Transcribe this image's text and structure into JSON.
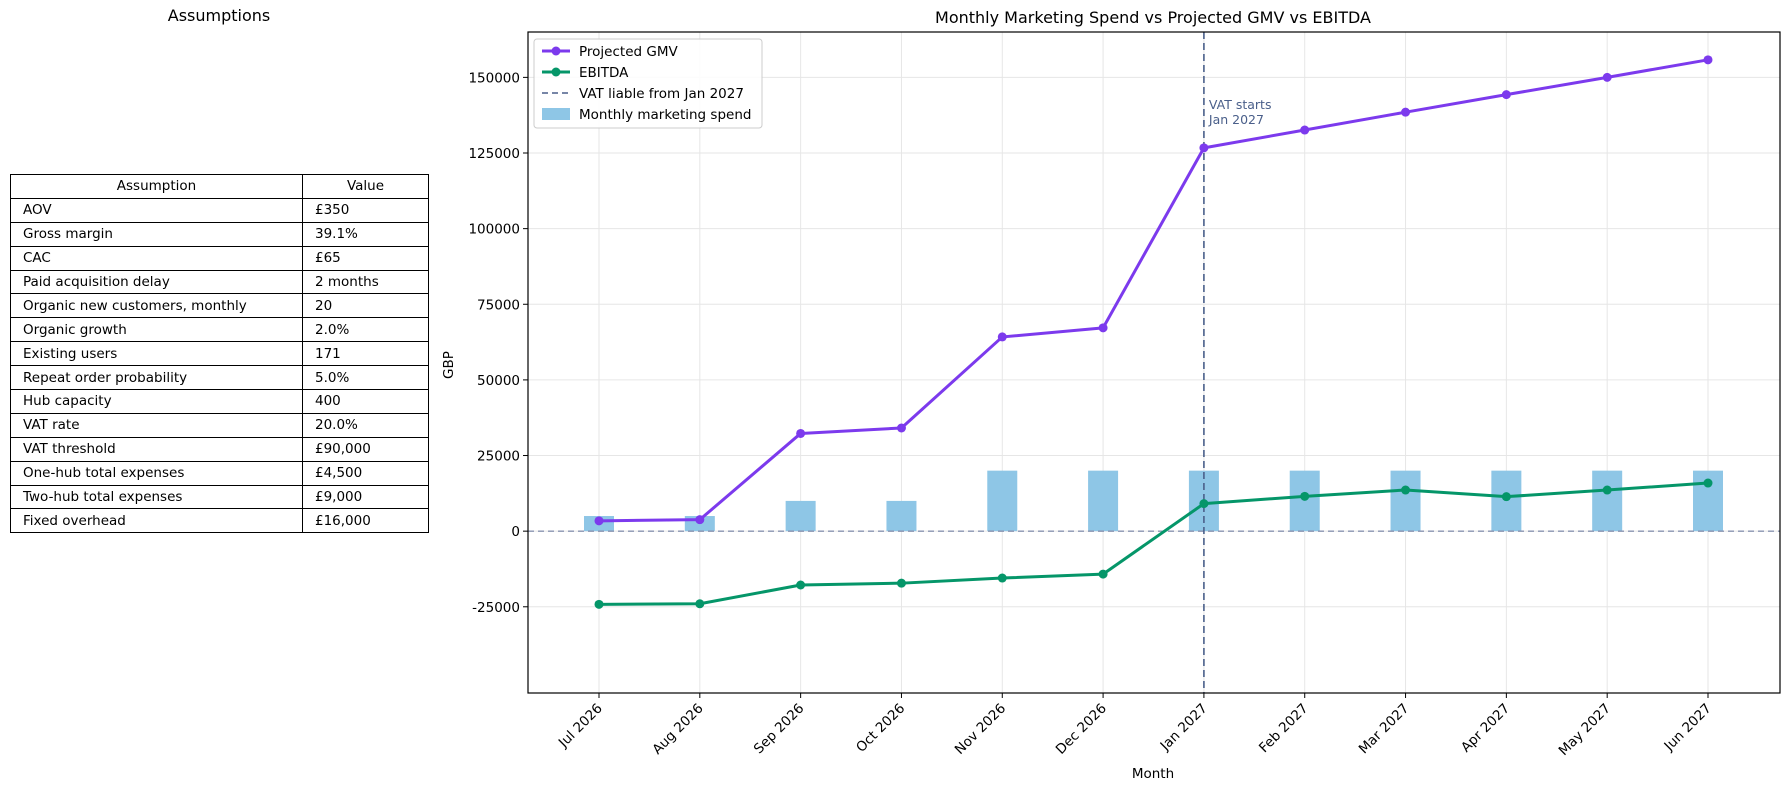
{
  "assumptions": {
    "title": "Assumptions",
    "headers": [
      "Assumption",
      "Value"
    ],
    "rows": [
      [
        "AOV",
        "£350"
      ],
      [
        "Gross margin",
        "39.1%"
      ],
      [
        "CAC",
        "£65"
      ],
      [
        "Paid acquisition delay",
        "2 months"
      ],
      [
        "Organic new customers, monthly",
        "20"
      ],
      [
        "Organic growth",
        "2.0%"
      ],
      [
        "Existing users",
        "171"
      ],
      [
        "Repeat order probability",
        "5.0%"
      ],
      [
        "Hub capacity",
        "400"
      ],
      [
        "VAT rate",
        "20.0%"
      ],
      [
        "VAT threshold",
        "£90,000"
      ],
      [
        "One-hub total expenses",
        "£4,500"
      ],
      [
        "Two-hub total expenses",
        "£9,000"
      ],
      [
        "Fixed overhead",
        "£16,000"
      ]
    ]
  },
  "chart_data": {
    "type": "line",
    "title": "Monthly Marketing Spend vs Projected GMV vs EBITDA",
    "xlabel": "Month",
    "ylabel": "GBP",
    "categories": [
      "Jul 2026",
      "Aug 2026",
      "Sep 2026",
      "Oct 2026",
      "Nov 2026",
      "Dec 2026",
      "Jan 2027",
      "Feb 2027",
      "Mar 2027",
      "Apr 2027",
      "May 2027",
      "Jun 2027"
    ],
    "ylim": [
      -53500,
      165000
    ],
    "yticks": [
      -25000,
      0,
      25000,
      50000,
      75000,
      100000,
      125000,
      150000
    ],
    "grid": true,
    "legend_position": "upper-left",
    "series": [
      {
        "name": "Projected GMV",
        "type": "line",
        "color": "#7c3aed",
        "values": [
          3400,
          3800,
          32300,
          34100,
          64200,
          67200,
          126700,
          132600,
          138500,
          144300,
          150000,
          155800
        ]
      },
      {
        "name": "EBITDA",
        "type": "line",
        "color": "#059669",
        "values": [
          -24200,
          -24000,
          -17800,
          -17200,
          -15500,
          -14200,
          9100,
          11500,
          13600,
          11400,
          13600,
          15900
        ]
      },
      {
        "name": "Monthly marketing spend",
        "type": "bar",
        "color": "#8ec6e6",
        "values": [
          5000,
          5000,
          10000,
          10000,
          20000,
          20000,
          20000,
          20000,
          20000,
          20000,
          20000,
          20000
        ]
      }
    ],
    "vline": {
      "category": "Jan 2027",
      "label": "VAT liable from Jan 2027",
      "annotation": [
        "VAT starts",
        "Jan 2027"
      ],
      "color": "#4a5f8a"
    },
    "hline": {
      "value": 0,
      "color": "#8893b0"
    }
  }
}
